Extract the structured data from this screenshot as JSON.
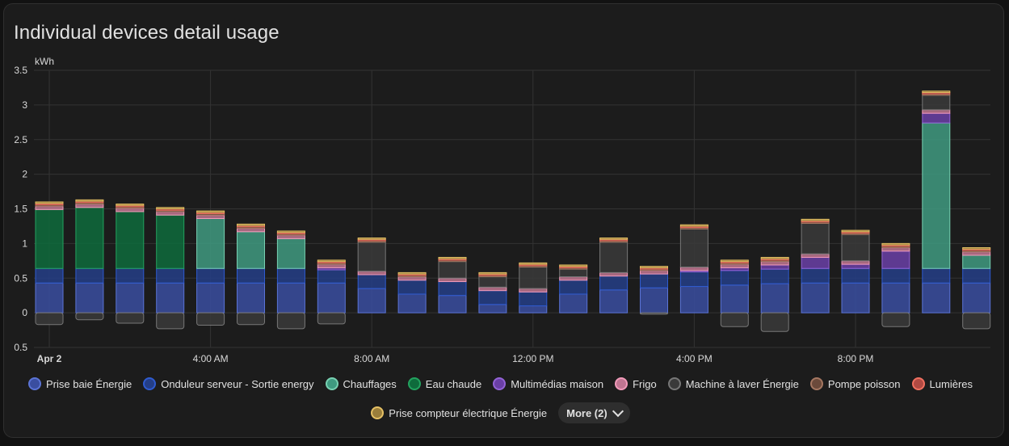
{
  "card": {
    "title": "Individual devices detail usage"
  },
  "legend_more_label": "More (2)",
  "chart_data": {
    "type": "bar",
    "stacked": true,
    "unit": "kWh",
    "ylim": [
      -0.5,
      3.5
    ],
    "yticks": [
      {
        "value": 3.5,
        "label": "3.5"
      },
      {
        "value": 3,
        "label": "3"
      },
      {
        "value": 2.5,
        "label": "2.5"
      },
      {
        "value": 2,
        "label": "2"
      },
      {
        "value": 1.5,
        "label": "1.5"
      },
      {
        "value": 1,
        "label": "1"
      },
      {
        "value": 0.5,
        "label": "0.5"
      },
      {
        "value": 0,
        "label": "0"
      },
      {
        "value": -0.5,
        "label": "0.5"
      }
    ],
    "xticks": [
      {
        "hour": 0,
        "label": "Apr 2",
        "bold": true
      },
      {
        "hour": 4,
        "label": "4:00 AM"
      },
      {
        "hour": 8,
        "label": "8:00 AM"
      },
      {
        "hour": 12,
        "label": "12:00 PM"
      },
      {
        "hour": 16,
        "label": "4:00 PM"
      },
      {
        "hour": 20,
        "label": "8:00 PM"
      }
    ],
    "hours": [
      0,
      1,
      2,
      3,
      4,
      5,
      6,
      7,
      8,
      9,
      10,
      11,
      12,
      13,
      14,
      15,
      16,
      17,
      18,
      19,
      20,
      21,
      22,
      23
    ],
    "grid": true,
    "legend_position": "bottom",
    "series": [
      {
        "name": "Prise baie Énergie",
        "fill": "#3a4ea0",
        "stroke": "#5b74d6",
        "values": [
          0.43,
          0.43,
          0.43,
          0.43,
          0.43,
          0.43,
          0.43,
          0.43,
          0.35,
          0.27,
          0.25,
          0.12,
          0.1,
          0.27,
          0.33,
          0.36,
          0.38,
          0.4,
          0.42,
          0.43,
          0.43,
          0.43,
          0.43,
          0.43
        ]
      },
      {
        "name": "Onduleur serveur - Sortie energy",
        "fill": "#243e87",
        "stroke": "#2f5bd0",
        "values": [
          0.21,
          0.21,
          0.21,
          0.21,
          0.21,
          0.21,
          0.21,
          0.19,
          0.2,
          0.2,
          0.2,
          0.2,
          0.2,
          0.2,
          0.2,
          0.2,
          0.21,
          0.21,
          0.21,
          0.21,
          0.21,
          0.21,
          0.21,
          0.21
        ]
      },
      {
        "name": "Chauffages",
        "fill": "#3f9a80",
        "stroke": "#78d1b2",
        "values": [
          0,
          0,
          0,
          0,
          0.72,
          0.53,
          0.43,
          0,
          0,
          0,
          0,
          0,
          0,
          0,
          0,
          0,
          0,
          0,
          0,
          0,
          0,
          0,
          2.1,
          0.19
        ]
      },
      {
        "name": "Eau chaude",
        "fill": "#0e6b3c",
        "stroke": "#23a35f",
        "values": [
          0.85,
          0.88,
          0.82,
          0.77,
          0,
          0,
          0,
          0,
          0,
          0,
          0,
          0,
          0,
          0,
          0,
          0,
          0,
          0,
          0,
          0,
          0,
          0,
          0,
          0
        ]
      },
      {
        "name": "Multimédias maison",
        "fill": "#6a3fa6",
        "stroke": "#9363d6",
        "values": [
          0,
          0,
          0,
          0,
          0,
          0,
          0,
          0.03,
          0,
          0,
          0,
          0,
          0,
          0,
          0,
          0,
          0.02,
          0.04,
          0.06,
          0.16,
          0.06,
          0.25,
          0.14,
          0
        ]
      },
      {
        "name": "Frigo",
        "fill": "#c07591",
        "stroke": "#f19ab9",
        "values": [
          0.05,
          0.05,
          0.05,
          0.05,
          0.05,
          0.05,
          0.05,
          0.05,
          0.05,
          0.05,
          0.05,
          0.05,
          0.05,
          0.05,
          0.05,
          0.05,
          0.05,
          0.05,
          0.05,
          0.05,
          0.05,
          0.05,
          0.05,
          0.05
        ]
      },
      {
        "name": "Machine à laver Énergie",
        "fill": "#3a3a3a",
        "stroke": "#777777",
        "values": [
          0,
          0,
          0,
          0,
          0,
          0,
          0,
          0,
          0.42,
          0,
          0.24,
          0.15,
          0.31,
          0.11,
          0.44,
          0,
          0.55,
          0,
          0,
          0.44,
          0.38,
          0,
          0.21,
          0
        ],
        "neg": [
          -0.17,
          -0.1,
          -0.15,
          -0.23,
          -0.18,
          -0.17,
          -0.23,
          -0.16,
          0,
          0,
          0,
          0,
          0,
          0,
          0,
          -0.02,
          0,
          -0.2,
          -0.27,
          0,
          0,
          -0.2,
          0,
          -0.23
        ]
      },
      {
        "name": "Pompe poisson",
        "fill": "#6b4a3b",
        "stroke": "#a57761",
        "values": [
          0.02,
          0.02,
          0.02,
          0.02,
          0.02,
          0.02,
          0.02,
          0.02,
          0.02,
          0.02,
          0.02,
          0.02,
          0.02,
          0.02,
          0.02,
          0.02,
          0.02,
          0.02,
          0.02,
          0.02,
          0.02,
          0.02,
          0.02,
          0.02
        ]
      },
      {
        "name": "Lumières",
        "fill": "#b04a43",
        "stroke": "#f07060",
        "values": [
          0.02,
          0.02,
          0.02,
          0.02,
          0.02,
          0.02,
          0.02,
          0.02,
          0.02,
          0.02,
          0.02,
          0.02,
          0.02,
          0.02,
          0.02,
          0.02,
          0.02,
          0.02,
          0.02,
          0.02,
          0.02,
          0.02,
          0.02,
          0.02
        ]
      },
      {
        "name": "Prise compteur électrique Énergie",
        "fill": "#9a7e3b",
        "stroke": "#e5c064",
        "values": [
          0.02,
          0.02,
          0.02,
          0.02,
          0.02,
          0.02,
          0.02,
          0.02,
          0.02,
          0.02,
          0.02,
          0.02,
          0.02,
          0.02,
          0.02,
          0.02,
          0.02,
          0.02,
          0.02,
          0.02,
          0.02,
          0.02,
          0.02,
          0.02
        ]
      }
    ]
  }
}
